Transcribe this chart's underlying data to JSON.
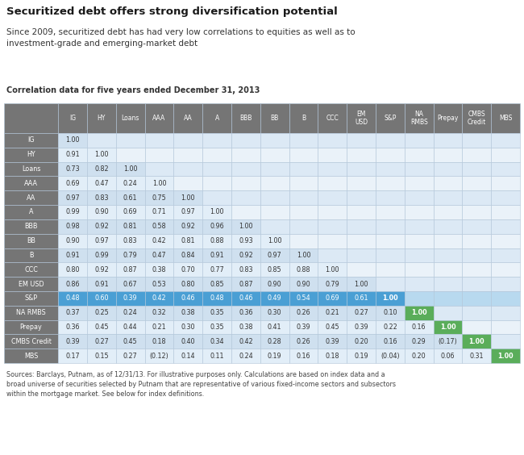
{
  "title": "Securitized debt offers strong diversification potential",
  "subtitle": "Since 2009, securitized debt has had very low correlations to equities as well as to\ninvestment-grade and emerging-market debt",
  "caption": "Correlation data for five years ended December 31, 2013",
  "footer": "Sources: Barclays, Putnam, as of 12/31/13. For illustrative purposes only. Calculations are based on index data and a\nbroad universe of securities selected by Putnam that are representative of various fixed-income sectors and subsectors\nwithin the mortgage market. See below for index definitions.",
  "col_headers": [
    "IG",
    "HY",
    "Loans",
    "AAA",
    "AA",
    "A",
    "BBB",
    "BB",
    "B",
    "CCC",
    "EM\nUSD",
    "S&P",
    "NA\nRMBS",
    "Prepay",
    "CMBS\nCredit",
    "MBS"
  ],
  "row_headers": [
    "IG",
    "HY",
    "Loans",
    "AAA",
    "AA",
    "A",
    "BBB",
    "BB",
    "B",
    "CCC",
    "EM USD",
    "S&P",
    "NA RMBS",
    "Prepay",
    "CMBS Credit",
    "MBS"
  ],
  "data": [
    [
      "1.00",
      "",
      "",
      "",
      "",
      "",
      "",
      "",
      "",
      "",
      "",
      "",
      "",
      "",
      "",
      ""
    ],
    [
      "0.91",
      "1.00",
      "",
      "",
      "",
      "",
      "",
      "",
      "",
      "",
      "",
      "",
      "",
      "",
      "",
      ""
    ],
    [
      "0.73",
      "0.82",
      "1.00",
      "",
      "",
      "",
      "",
      "",
      "",
      "",
      "",
      "",
      "",
      "",
      "",
      ""
    ],
    [
      "0.69",
      "0.47",
      "0.24",
      "1.00",
      "",
      "",
      "",
      "",
      "",
      "",
      "",
      "",
      "",
      "",
      "",
      ""
    ],
    [
      "0.97",
      "0.83",
      "0.61",
      "0.75",
      "1.00",
      "",
      "",
      "",
      "",
      "",
      "",
      "",
      "",
      "",
      "",
      ""
    ],
    [
      "0.99",
      "0.90",
      "0.69",
      "0.71",
      "0.97",
      "1.00",
      "",
      "",
      "",
      "",
      "",
      "",
      "",
      "",
      "",
      ""
    ],
    [
      "0.98",
      "0.92",
      "0.81",
      "0.58",
      "0.92",
      "0.96",
      "1.00",
      "",
      "",
      "",
      "",
      "",
      "",
      "",
      "",
      ""
    ],
    [
      "0.90",
      "0.97",
      "0.83",
      "0.42",
      "0.81",
      "0.88",
      "0.93",
      "1.00",
      "",
      "",
      "",
      "",
      "",
      "",
      "",
      ""
    ],
    [
      "0.91",
      "0.99",
      "0.79",
      "0.47",
      "0.84",
      "0.91",
      "0.92",
      "0.97",
      "1.00",
      "",
      "",
      "",
      "",
      "",
      "",
      ""
    ],
    [
      "0.80",
      "0.92",
      "0.87",
      "0.38",
      "0.70",
      "0.77",
      "0.83",
      "0.85",
      "0.88",
      "1.00",
      "",
      "",
      "",
      "",
      "",
      ""
    ],
    [
      "0.86",
      "0.91",
      "0.67",
      "0.53",
      "0.80",
      "0.85",
      "0.87",
      "0.90",
      "0.90",
      "0.79",
      "1.00",
      "",
      "",
      "",
      "",
      ""
    ],
    [
      "0.48",
      "0.60",
      "0.39",
      "0.42",
      "0.46",
      "0.48",
      "0.46",
      "0.49",
      "0.54",
      "0.69",
      "0.61",
      "1.00",
      "",
      "",
      "",
      ""
    ],
    [
      "0.37",
      "0.25",
      "0.24",
      "0.32",
      "0.38",
      "0.35",
      "0.36",
      "0.30",
      "0.26",
      "0.21",
      "0.27",
      "0.10",
      "1.00",
      "",
      "",
      ""
    ],
    [
      "0.36",
      "0.45",
      "0.44",
      "0.21",
      "0.30",
      "0.35",
      "0.38",
      "0.41",
      "0.39",
      "0.45",
      "0.39",
      "0.22",
      "0.16",
      "1.00",
      "",
      ""
    ],
    [
      "0.39",
      "0.27",
      "0.45",
      "0.18",
      "0.40",
      "0.34",
      "0.42",
      "0.28",
      "0.26",
      "0.39",
      "0.20",
      "0.16",
      "0.29",
      "(0.17)",
      "1.00",
      ""
    ],
    [
      "0.17",
      "0.15",
      "0.27",
      "(0.12)",
      "0.14",
      "0.11",
      "0.24",
      "0.19",
      "0.16",
      "0.18",
      "0.19",
      "(0.04)",
      "0.20",
      "0.06",
      "0.31",
      "1.00"
    ]
  ],
  "header_bg": "#757575",
  "header_fg": "#ffffff",
  "row_label_bg": "#757575",
  "row_label_fg": "#ffffff",
  "cell_bg_even": "#cfe0ef",
  "cell_bg_odd": "#e2eef8",
  "cell_empty_even": "#dce9f5",
  "cell_empty_odd": "#eaf2f9",
  "sp_row_bg": "#4a9fd4",
  "sp_row_fg": "#ffffff",
  "green_bg": "#5aad5a",
  "green_fg": "#ffffff",
  "bg_color": "#ffffff",
  "border_color": "#b0c4d8"
}
